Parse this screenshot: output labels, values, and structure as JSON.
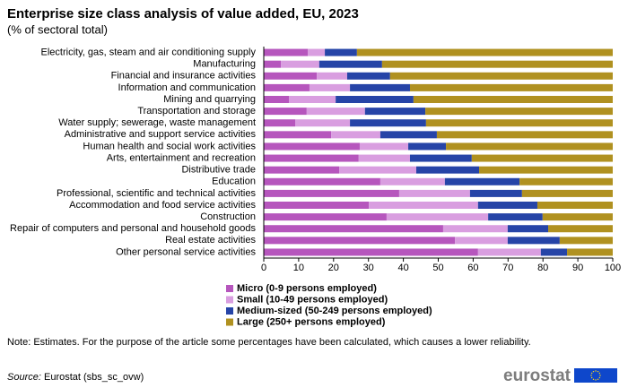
{
  "chart_data": {
    "type": "bar",
    "orientation": "horizontal",
    "stacked": true,
    "title": "Enterprise size class analysis of value added, EU, 2023",
    "subtitle": "(% of sectoral total)",
    "categories": [
      "Electricity, gas, steam and air conditioning supply",
      "Manufacturing",
      "Financial and insurance activities",
      "Information and communication",
      "Mining and quarrying",
      "Transportation and storage",
      "Water supply; sewerage, waste management",
      "Administrative and support service activities",
      "Human health and social work activities",
      "Arts, entertainment and recreation",
      "Distributive trade",
      "Education",
      "Professional, scientific and technical activities",
      "Accommodation and food service activities",
      "Construction",
      "Repair of computers and personal and household goods",
      "Real estate activities",
      "Other personal service activities"
    ],
    "series": [
      {
        "name": "Micro (0-9 persons employed)",
        "color": "#b656bd",
        "values": [
          12.6,
          4.9,
          15.2,
          13.1,
          7.2,
          12.3,
          9.0,
          19.3,
          27.5,
          27.2,
          21.6,
          33.4,
          38.8,
          30.1,
          35.2,
          51.4,
          54.8,
          61.4
        ]
      },
      {
        "name": "Small (10-49 persons employed)",
        "color": "#d99ee0",
        "values": [
          4.9,
          11.0,
          8.7,
          11.6,
          13.4,
          16.7,
          15.7,
          14.1,
          13.9,
          14.7,
          22.1,
          18.5,
          20.3,
          31.3,
          29.1,
          18.5,
          15.1,
          18.0
        ]
      },
      {
        "name": "Medium-sized (50-249 persons employed)",
        "color": "#2644a7",
        "values": [
          9.2,
          18.0,
          12.3,
          17.2,
          22.3,
          17.3,
          21.8,
          16.2,
          10.8,
          17.7,
          18.0,
          21.4,
          14.9,
          17.0,
          15.6,
          11.6,
          14.9,
          7.5
        ]
      },
      {
        "name": "Large (250+ persons employed)",
        "color": "#b09120",
        "values": [
          73.3,
          66.1,
          63.8,
          58.1,
          57.1,
          53.7,
          53.5,
          50.4,
          47.8,
          40.4,
          38.3,
          26.7,
          26.0,
          21.6,
          20.1,
          18.5,
          15.2,
          13.1
        ]
      }
    ],
    "xlim": [
      0,
      100
    ],
    "xticks": [
      0,
      10,
      20,
      30,
      40,
      50,
      60,
      70,
      80,
      90,
      100
    ],
    "grid": false,
    "legend_position": "bottom",
    "note": "Note: Estimates. For the purpose of the article some percentages have been calculated, which causes a lower reliability.",
    "source_label": "Source:",
    "source": "Eurostat (sbs_sc_ovw)",
    "logo": "eurostat"
  }
}
